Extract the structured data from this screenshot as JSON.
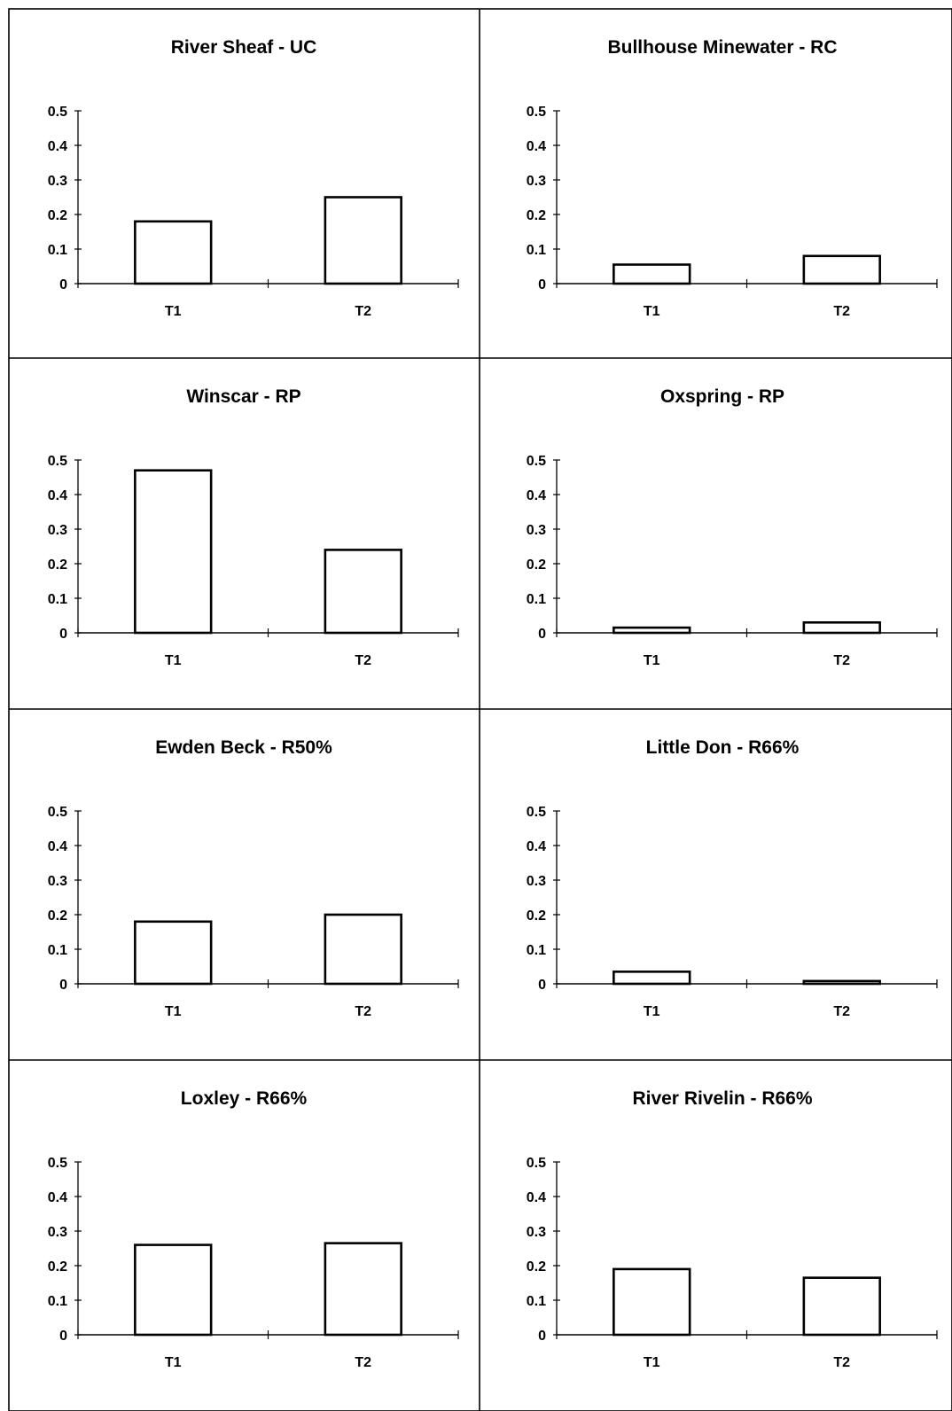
{
  "chart_data": [
    {
      "type": "bar",
      "title": "River Sheaf - UC",
      "categories": [
        "T1",
        "T2"
      ],
      "values": [
        0.18,
        0.25
      ],
      "ylim": [
        0,
        0.5
      ],
      "yticks": [
        "0",
        "0.1",
        "0.2",
        "0.3",
        "0.4",
        "0.5"
      ],
      "grid": false
    },
    {
      "type": "bar",
      "title": "Bullhouse Minewater - RC",
      "categories": [
        "T1",
        "T2"
      ],
      "values": [
        0.055,
        0.08
      ],
      "ylim": [
        0,
        0.5
      ],
      "yticks": [
        "0",
        "0.1",
        "0.2",
        "0.3",
        "0.4",
        "0.5"
      ],
      "grid": false
    },
    {
      "type": "bar",
      "title": "Winscar - RP",
      "categories": [
        "T1",
        "T2"
      ],
      "values": [
        0.47,
        0.24
      ],
      "ylim": [
        0,
        0.5
      ],
      "yticks": [
        "0",
        "0.1",
        "0.2",
        "0.3",
        "0.4",
        "0.5"
      ],
      "grid": false
    },
    {
      "type": "bar",
      "title": "Oxspring - RP",
      "categories": [
        "T1",
        "T2"
      ],
      "values": [
        0.015,
        0.03
      ],
      "ylim": [
        0,
        0.5
      ],
      "yticks": [
        "0",
        "0.1",
        "0.2",
        "0.3",
        "0.4",
        "0.5"
      ],
      "grid": false
    },
    {
      "type": "bar",
      "title": "Ewden Beck - R50%",
      "categories": [
        "T1",
        "T2"
      ],
      "values": [
        0.18,
        0.2
      ],
      "ylim": [
        0,
        0.5
      ],
      "yticks": [
        "0",
        "0.1",
        "0.2",
        "0.3",
        "0.4",
        "0.5"
      ],
      "grid": false
    },
    {
      "type": "bar",
      "title": "Little Don - R66%",
      "categories": [
        "T1",
        "T2"
      ],
      "values": [
        0.035,
        0.008
      ],
      "ylim": [
        0,
        0.5
      ],
      "yticks": [
        "0",
        "0.1",
        "0.2",
        "0.3",
        "0.4",
        "0.5"
      ],
      "grid": false
    },
    {
      "type": "bar",
      "title": "Loxley - R66%",
      "categories": [
        "T1",
        "T2"
      ],
      "values": [
        0.26,
        0.265
      ],
      "ylim": [
        0,
        0.5
      ],
      "yticks": [
        "0",
        "0.1",
        "0.2",
        "0.3",
        "0.4",
        "0.5"
      ],
      "grid": false
    },
    {
      "type": "bar",
      "title": "River Rivelin - R66%",
      "categories": [
        "T1",
        "T2"
      ],
      "values": [
        0.19,
        0.165
      ],
      "ylim": [
        0,
        0.5
      ],
      "yticks": [
        "0",
        "0.1",
        "0.2",
        "0.3",
        "0.4",
        "0.5"
      ],
      "grid": false
    }
  ]
}
